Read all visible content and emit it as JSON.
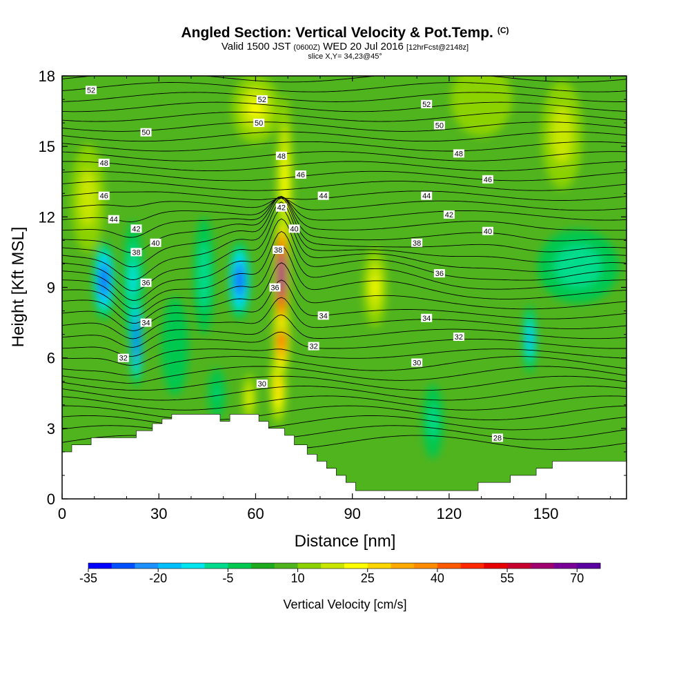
{
  "title": {
    "main": "Angled Section: Vertical Velocity & Pot.Temp.",
    "mark": "(C)",
    "valid_prefix": "Valid 1500 JST",
    "valid_utc": "(0600Z)",
    "valid_date": "WED 20 Jul 2016",
    "forecast": "[12hrFcst@2148z]",
    "slice": "slice X,Y= 34,23@45°"
  },
  "chart_data": {
    "type": "heatmap",
    "xlabel": "Distance [nm]",
    "ylabel": "Height [Kft MSL]",
    "xlim": [
      0,
      175
    ],
    "ylim": [
      0,
      18
    ],
    "x_ticks": [
      0,
      30,
      60,
      90,
      120,
      150
    ],
    "y_ticks": [
      0,
      3,
      6,
      9,
      12,
      15,
      18
    ],
    "colorbar": {
      "label": "Vertical Velocity [cm/s]",
      "min": -35,
      "max": 75,
      "step": 5,
      "tick_labels": [
        -35,
        -20,
        -5,
        10,
        25,
        40,
        55,
        70
      ],
      "colors": [
        "#0000ff",
        "#0050ff",
        "#1e90ff",
        "#00bfff",
        "#00e5ee",
        "#00dc8c",
        "#00c850",
        "#1eaa1e",
        "#50b41e",
        "#8cd200",
        "#c8e600",
        "#ffff00",
        "#ffd700",
        "#ffaa00",
        "#ff8c00",
        "#ff5a00",
        "#ff2800",
        "#e60000",
        "#c8002d",
        "#a0006e",
        "#780096",
        "#5a00a0"
      ]
    },
    "terrain": [
      [
        0,
        2.0
      ],
      [
        3,
        2.0
      ],
      [
        3,
        2.3
      ],
      [
        9,
        2.3
      ],
      [
        9,
        2.6
      ],
      [
        23,
        2.6
      ],
      [
        23,
        2.9
      ],
      [
        28,
        2.9
      ],
      [
        28,
        3.2
      ],
      [
        31,
        3.2
      ],
      [
        31,
        3.4
      ],
      [
        34,
        3.4
      ],
      [
        34,
        3.6
      ],
      [
        49,
        3.6
      ],
      [
        49,
        3.3
      ],
      [
        52,
        3.3
      ],
      [
        52,
        3.6
      ],
      [
        61,
        3.6
      ],
      [
        61,
        3.3
      ],
      [
        64,
        3.3
      ],
      [
        64,
        3.0
      ],
      [
        69,
        3.0
      ],
      [
        69,
        2.7
      ],
      [
        72,
        2.7
      ],
      [
        72,
        2.3
      ],
      [
        76,
        2.3
      ],
      [
        76,
        1.9
      ],
      [
        79,
        1.9
      ],
      [
        79,
        1.6
      ],
      [
        82,
        1.6
      ],
      [
        82,
        1.3
      ],
      [
        85,
        1.3
      ],
      [
        85,
        1.0
      ],
      [
        88,
        1.0
      ],
      [
        88,
        0.7
      ],
      [
        91,
        0.7
      ],
      [
        91,
        0.35
      ],
      [
        129,
        0.35
      ],
      [
        129,
        0.7
      ],
      [
        139,
        0.7
      ],
      [
        139,
        1.0
      ],
      [
        147,
        1.0
      ],
      [
        147,
        1.3
      ],
      [
        152,
        1.3
      ],
      [
        152,
        1.6
      ],
      [
        175,
        1.6
      ],
      [
        175,
        0
      ],
      [
        0,
        0
      ]
    ],
    "w_field": [
      {
        "x": 13,
        "y": 9.3,
        "sx": 3.2,
        "sy": 1.6,
        "w": -32
      },
      {
        "x": 23,
        "y": 6.8,
        "sx": 1.8,
        "sy": 2.0,
        "w": -33
      },
      {
        "x": 22,
        "y": 9.2,
        "sx": 3,
        "sy": 2.5,
        "w": -16
      },
      {
        "x": 55,
        "y": 9.3,
        "sx": 3.2,
        "sy": 1.6,
        "w": -32
      },
      {
        "x": 44,
        "y": 9.5,
        "sx": 3,
        "sy": 2.4,
        "w": -14
      },
      {
        "x": 68,
        "y": 9.5,
        "sx": 2.2,
        "sy": 2.4,
        "w": 72
      },
      {
        "x": 68,
        "y": 7.0,
        "sx": 2.4,
        "sy": 1.8,
        "w": 45
      },
      {
        "x": 67,
        "y": 4.8,
        "sx": 2.4,
        "sy": 1.6,
        "w": 28
      },
      {
        "x": 69,
        "y": 13.5,
        "sx": 2.4,
        "sy": 3.5,
        "w": 22
      },
      {
        "x": 58,
        "y": 4.3,
        "sx": 2,
        "sy": 1,
        "w": 20
      },
      {
        "x": 60,
        "y": 16.6,
        "sx": 7,
        "sy": 1.4,
        "w": 20
      },
      {
        "x": 97,
        "y": 9.0,
        "sx": 3.5,
        "sy": 1.6,
        "w": 20
      },
      {
        "x": 155,
        "y": 15.5,
        "sx": 6,
        "sy": 2.2,
        "w": 18
      },
      {
        "x": 8,
        "y": 12.8,
        "sx": 5,
        "sy": 2.2,
        "w": 18
      },
      {
        "x": 130,
        "y": 17,
        "sx": 9,
        "sy": 1.5,
        "w": 14
      },
      {
        "x": 105,
        "y": 15,
        "sx": 22,
        "sy": 2.5,
        "w": -4
      },
      {
        "x": 160,
        "y": 9.9,
        "sx": 12,
        "sy": 1.5,
        "w": -14
      },
      {
        "x": 145,
        "y": 6.8,
        "sx": 2,
        "sy": 1.4,
        "w": -22
      },
      {
        "x": 115,
        "y": 3.3,
        "sx": 3,
        "sy": 1.5,
        "w": -12
      },
      {
        "x": 48,
        "y": 4.5,
        "sx": 2.5,
        "sy": 1.0,
        "w": -10
      },
      {
        "x": 35,
        "y": 6.5,
        "sx": 4,
        "sy": 2,
        "w": -6
      }
    ],
    "theta_labels": [
      {
        "x": 9,
        "y": 17.4,
        "t": "52"
      },
      {
        "x": 62,
        "y": 17.0,
        "t": "52"
      },
      {
        "x": 113,
        "y": 16.8,
        "t": "52"
      },
      {
        "x": 26,
        "y": 15.6,
        "t": "50"
      },
      {
        "x": 61,
        "y": 16.0,
        "t": "50"
      },
      {
        "x": 117,
        "y": 15.9,
        "t": "50"
      },
      {
        "x": 13,
        "y": 14.3,
        "t": "48"
      },
      {
        "x": 68,
        "y": 14.6,
        "t": "48"
      },
      {
        "x": 123,
        "y": 14.7,
        "t": "48"
      },
      {
        "x": 13,
        "y": 12.9,
        "t": "46"
      },
      {
        "x": 74,
        "y": 13.8,
        "t": "46"
      },
      {
        "x": 132,
        "y": 13.6,
        "t": "46"
      },
      {
        "x": 16,
        "y": 11.9,
        "t": "44"
      },
      {
        "x": 81,
        "y": 12.9,
        "t": "44"
      },
      {
        "x": 113,
        "y": 12.9,
        "t": "44"
      },
      {
        "x": 23,
        "y": 11.5,
        "t": "42"
      },
      {
        "x": 68,
        "y": 12.4,
        "t": "42"
      },
      {
        "x": 120,
        "y": 12.1,
        "t": "42"
      },
      {
        "x": 29,
        "y": 10.9,
        "t": "40"
      },
      {
        "x": 72,
        "y": 11.5,
        "t": "40"
      },
      {
        "x": 132,
        "y": 11.4,
        "t": "40"
      },
      {
        "x": 23,
        "y": 10.5,
        "t": "38"
      },
      {
        "x": 67,
        "y": 10.6,
        "t": "38"
      },
      {
        "x": 110,
        "y": 10.9,
        "t": "38"
      },
      {
        "x": 26,
        "y": 9.2,
        "t": "36"
      },
      {
        "x": 66,
        "y": 9.0,
        "t": "36"
      },
      {
        "x": 117,
        "y": 9.6,
        "t": "36"
      },
      {
        "x": 26,
        "y": 7.5,
        "t": "34"
      },
      {
        "x": 81,
        "y": 7.8,
        "t": "34"
      },
      {
        "x": 113,
        "y": 7.7,
        "t": "34"
      },
      {
        "x": 19,
        "y": 6.0,
        "t": "32"
      },
      {
        "x": 78,
        "y": 6.5,
        "t": "32"
      },
      {
        "x": 123,
        "y": 6.9,
        "t": "32"
      },
      {
        "x": 62,
        "y": 4.9,
        "t": "30"
      },
      {
        "x": 110,
        "y": 5.8,
        "t": "30"
      },
      {
        "x": 135,
        "y": 2.6,
        "t": "28"
      }
    ]
  }
}
